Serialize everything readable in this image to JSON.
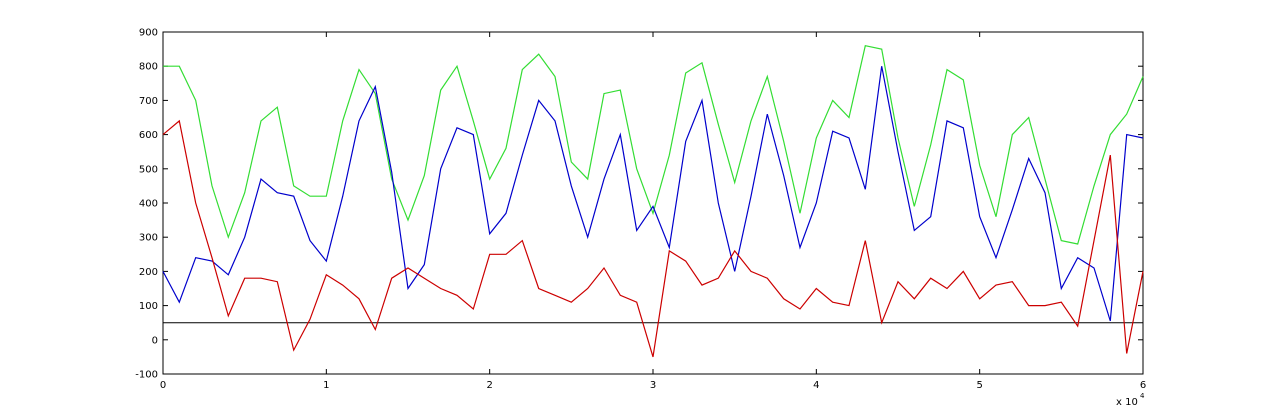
{
  "chart_data": {
    "type": "line",
    "x": [
      0,
      1000,
      2000,
      3000,
      4000,
      5000,
      6000,
      7000,
      8000,
      9000,
      10000,
      11000,
      12000,
      13000,
      14000,
      15000,
      16000,
      17000,
      18000,
      19000,
      20000,
      21000,
      22000,
      23000,
      24000,
      25000,
      26000,
      27000,
      28000,
      29000,
      30000,
      31000,
      32000,
      33000,
      34000,
      35000,
      36000,
      37000,
      38000,
      39000,
      40000,
      41000,
      42000,
      43000,
      44000,
      45000,
      46000,
      47000,
      48000,
      49000,
      50000,
      51000,
      52000,
      53000,
      54000,
      55000,
      56000,
      57000,
      58000,
      59000,
      60000
    ],
    "series": [
      {
        "color": "#33dd33",
        "values": [
          800,
          800,
          700,
          450,
          300,
          430,
          640,
          680,
          450,
          420,
          420,
          640,
          790,
          720,
          470,
          350,
          480,
          730,
          800,
          640,
          470,
          560,
          790,
          835,
          770,
          520,
          470,
          720,
          730,
          500,
          370,
          540,
          780,
          810,
          630,
          460,
          640,
          770,
          580,
          370,
          590,
          700,
          650,
          860,
          850,
          590,
          390,
          570,
          790,
          760,
          510,
          360,
          600,
          650,
          470,
          290,
          280,
          450,
          600,
          660,
          770
        ]
      },
      {
        "color": "#0000cc",
        "values": [
          200,
          110,
          240,
          230,
          190,
          300,
          470,
          430,
          420,
          290,
          230,
          420,
          640,
          740,
          490,
          150,
          220,
          500,
          620,
          600,
          310,
          370,
          540,
          700,
          640,
          450,
          300,
          470,
          600,
          320,
          390,
          270,
          580,
          700,
          400,
          200,
          420,
          660,
          480,
          270,
          400,
          610,
          590,
          440,
          800,
          550,
          320,
          360,
          640,
          620,
          360,
          240,
          380,
          530,
          430,
          150,
          240,
          210,
          55,
          600,
          590
        ]
      },
      {
        "color": "#cc0000",
        "values": [
          600,
          640,
          400,
          240,
          70,
          180,
          180,
          170,
          -30,
          60,
          190,
          160,
          120,
          30,
          180,
          210,
          180,
          150,
          130,
          90,
          250,
          250,
          290,
          150,
          130,
          110,
          150,
          210,
          130,
          110,
          -50,
          260,
          230,
          160,
          180,
          260,
          200,
          180,
          120,
          90,
          150,
          110,
          100,
          290,
          50,
          170,
          120,
          180,
          150,
          200,
          120,
          160,
          170,
          100,
          100,
          110,
          40,
          290,
          540,
          -40,
          200
        ]
      }
    ],
    "reference_line": 50,
    "xlim": [
      0,
      60000
    ],
    "xticks": [
      {
        "value": 0,
        "label": "0"
      },
      {
        "value": 10000,
        "label": "1"
      },
      {
        "value": 20000,
        "label": "2"
      },
      {
        "value": 30000,
        "label": "3"
      },
      {
        "value": 40000,
        "label": "4"
      },
      {
        "value": 50000,
        "label": "5"
      },
      {
        "value": 60000,
        "label": "6"
      }
    ],
    "x_multiplier": "x 10",
    "x_exponent": "4",
    "ylim": [
      -100,
      900
    ],
    "yticks": [
      -100,
      0,
      100,
      200,
      300,
      400,
      500,
      600,
      700,
      800,
      900
    ]
  }
}
